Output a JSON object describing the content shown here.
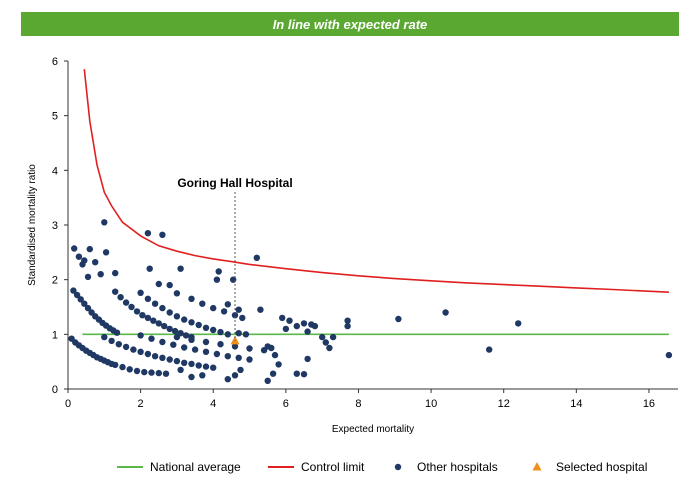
{
  "banner": {
    "text": "In line with expected rate"
  },
  "chart_data": {
    "type": "scatter",
    "title": "",
    "xlabel": "Expected mortality",
    "ylabel": "Standardised mortality ratio",
    "xlim": [
      0,
      16.8
    ],
    "ylim": [
      0,
      6
    ],
    "xticks": [
      0,
      2,
      4,
      6,
      8,
      10,
      12,
      14,
      16
    ],
    "yticks": [
      0,
      1,
      2,
      3,
      4,
      5,
      6
    ],
    "grid": false,
    "legend_placement": "bottom",
    "annotation": {
      "text": "Goring Hall Hospital",
      "x": 4.6,
      "y": 0.88
    },
    "series": [
      {
        "name": "National average",
        "kind": "line",
        "color": "#5ab84a",
        "x": [
          0.4,
          16.55
        ],
        "y": [
          1,
          1
        ]
      },
      {
        "name": "Control limit",
        "kind": "line",
        "color": "#e02020",
        "x": [
          0.45,
          0.6,
          0.8,
          1,
          1.2,
          1.5,
          2,
          2.5,
          3,
          3.5,
          4,
          4.5,
          5,
          6,
          7,
          8,
          9,
          10,
          11,
          12,
          13,
          14,
          15,
          16.55
        ],
        "y": [
          5.85,
          4.9,
          4.1,
          3.6,
          3.35,
          3.05,
          2.8,
          2.62,
          2.52,
          2.44,
          2.38,
          2.33,
          2.28,
          2.2,
          2.13,
          2.07,
          2.02,
          1.98,
          1.94,
          1.91,
          1.88,
          1.85,
          1.82,
          1.77
        ]
      },
      {
        "name": "Other hospitals",
        "kind": "scatter",
        "marker": "circle",
        "color": "#1f3864",
        "points": [
          [
            0.17,
            2.57
          ],
          [
            0.45,
            2.35
          ],
          [
            0.3,
            2.42
          ],
          [
            0.4,
            2.28
          ],
          [
            0.55,
            2.05
          ],
          [
            0.6,
            2.56
          ],
          [
            0.75,
            2.32
          ],
          [
            0.9,
            2.1
          ],
          [
            1.0,
            3.05
          ],
          [
            1.05,
            2.5
          ],
          [
            1.3,
            2.12
          ],
          [
            2.2,
            2.85
          ],
          [
            2.6,
            2.82
          ],
          [
            2.25,
            2.2
          ],
          [
            2.5,
            1.92
          ],
          [
            3.1,
            2.2
          ],
          [
            4.15,
            2.15
          ],
          [
            4.1,
            2.0
          ],
          [
            4.55,
            2.0
          ],
          [
            5.2,
            2.4
          ],
          [
            2.8,
            1.9
          ],
          [
            3.0,
            1.75
          ],
          [
            0.15,
            1.8
          ],
          [
            0.25,
            1.72
          ],
          [
            0.35,
            1.64
          ],
          [
            0.45,
            1.56
          ],
          [
            0.55,
            1.48
          ],
          [
            0.65,
            1.4
          ],
          [
            0.75,
            1.33
          ],
          [
            0.85,
            1.27
          ],
          [
            0.95,
            1.21
          ],
          [
            1.05,
            1.16
          ],
          [
            1.15,
            1.11
          ],
          [
            1.25,
            1.07
          ],
          [
            1.35,
            1.03
          ],
          [
            1.3,
            1.78
          ],
          [
            1.45,
            1.68
          ],
          [
            1.6,
            1.58
          ],
          [
            1.75,
            1.5
          ],
          [
            1.9,
            1.42
          ],
          [
            2.05,
            1.35
          ],
          [
            2.2,
            1.3
          ],
          [
            2.35,
            1.25
          ],
          [
            2.5,
            1.2
          ],
          [
            2.65,
            1.15
          ],
          [
            2.8,
            1.1
          ],
          [
            2.95,
            1.06
          ],
          [
            3.1,
            1.02
          ],
          [
            3.25,
            0.98
          ],
          [
            3.4,
            0.95
          ],
          [
            2.0,
            1.76
          ],
          [
            2.2,
            1.65
          ],
          [
            2.4,
            1.56
          ],
          [
            2.6,
            1.48
          ],
          [
            2.8,
            1.4
          ],
          [
            3.0,
            1.33
          ],
          [
            3.2,
            1.27
          ],
          [
            3.4,
            1.22
          ],
          [
            3.6,
            1.17
          ],
          [
            3.8,
            1.12
          ],
          [
            4.0,
            1.08
          ],
          [
            4.2,
            1.04
          ],
          [
            4.4,
            1.0
          ],
          [
            3.4,
            1.65
          ],
          [
            3.7,
            1.56
          ],
          [
            4.0,
            1.48
          ],
          [
            4.3,
            1.42
          ],
          [
            4.6,
            1.35
          ],
          [
            4.8,
            1.3
          ],
          [
            4.4,
            1.55
          ],
          [
            4.7,
            1.45
          ],
          [
            0.1,
            0.92
          ],
          [
            0.2,
            0.85
          ],
          [
            0.3,
            0.8
          ],
          [
            0.4,
            0.75
          ],
          [
            0.5,
            0.7
          ],
          [
            0.6,
            0.66
          ],
          [
            0.7,
            0.62
          ],
          [
            0.8,
            0.58
          ],
          [
            0.9,
            0.55
          ],
          [
            1.0,
            0.52
          ],
          [
            1.1,
            0.49
          ],
          [
            1.2,
            0.46
          ],
          [
            1.3,
            0.44
          ],
          [
            1.5,
            0.4
          ],
          [
            1.7,
            0.36
          ],
          [
            1.9,
            0.33
          ],
          [
            2.1,
            0.31
          ],
          [
            2.3,
            0.3
          ],
          [
            2.5,
            0.29
          ],
          [
            2.7,
            0.28
          ],
          [
            1.0,
            0.95
          ],
          [
            1.2,
            0.88
          ],
          [
            1.4,
            0.82
          ],
          [
            1.6,
            0.77
          ],
          [
            1.8,
            0.72
          ],
          [
            2.0,
            0.68
          ],
          [
            2.2,
            0.64
          ],
          [
            2.4,
            0.6
          ],
          [
            2.6,
            0.57
          ],
          [
            2.8,
            0.54
          ],
          [
            3.0,
            0.51
          ],
          [
            3.2,
            0.48
          ],
          [
            3.4,
            0.46
          ],
          [
            3.6,
            0.43
          ],
          [
            3.8,
            0.41
          ],
          [
            4.0,
            0.39
          ],
          [
            2.0,
            0.98
          ],
          [
            2.3,
            0.92
          ],
          [
            2.6,
            0.86
          ],
          [
            2.9,
            0.81
          ],
          [
            3.2,
            0.76
          ],
          [
            3.5,
            0.72
          ],
          [
            3.8,
            0.68
          ],
          [
            4.1,
            0.64
          ],
          [
            4.4,
            0.6
          ],
          [
            4.7,
            0.57
          ],
          [
            5.0,
            0.54
          ],
          [
            3.0,
            0.95
          ],
          [
            3.4,
            0.9
          ],
          [
            3.8,
            0.86
          ],
          [
            4.2,
            0.82
          ],
          [
            4.6,
            0.78
          ],
          [
            5.0,
            0.74
          ],
          [
            5.4,
            0.71
          ],
          [
            4.7,
            1.02
          ],
          [
            4.9,
            1.0
          ],
          [
            5.3,
            1.45
          ],
          [
            5.5,
            0.78
          ],
          [
            5.6,
            0.75
          ],
          [
            5.7,
            0.62
          ],
          [
            5.8,
            0.45
          ],
          [
            5.9,
            1.3
          ],
          [
            6.0,
            1.1
          ],
          [
            6.1,
            1.25
          ],
          [
            6.3,
            1.15
          ],
          [
            6.5,
            1.2
          ],
          [
            6.7,
            1.18
          ],
          [
            6.8,
            1.15
          ],
          [
            6.6,
            1.05
          ],
          [
            6.6,
            0.55
          ],
          [
            7.0,
            0.95
          ],
          [
            7.1,
            0.85
          ],
          [
            7.2,
            0.75
          ],
          [
            7.3,
            0.95
          ],
          [
            7.7,
            1.25
          ],
          [
            7.7,
            1.15
          ],
          [
            9.1,
            1.28
          ],
          [
            10.4,
            1.4
          ],
          [
            11.6,
            0.72
          ],
          [
            12.4,
            1.2
          ],
          [
            16.55,
            0.62
          ],
          [
            3.4,
            0.22
          ],
          [
            3.7,
            0.25
          ],
          [
            4.4,
            0.18
          ],
          [
            4.75,
            0.35
          ],
          [
            5.5,
            0.15
          ],
          [
            6.3,
            0.28
          ],
          [
            6.5,
            0.27
          ],
          [
            5.65,
            0.28
          ],
          [
            4.6,
            0.25
          ],
          [
            3.1,
            0.35
          ]
        ]
      },
      {
        "name": "Selected hospital",
        "kind": "scatter",
        "marker": "triangle",
        "color": "#f0901a",
        "points": [
          [
            4.6,
            0.88
          ]
        ]
      }
    ]
  }
}
